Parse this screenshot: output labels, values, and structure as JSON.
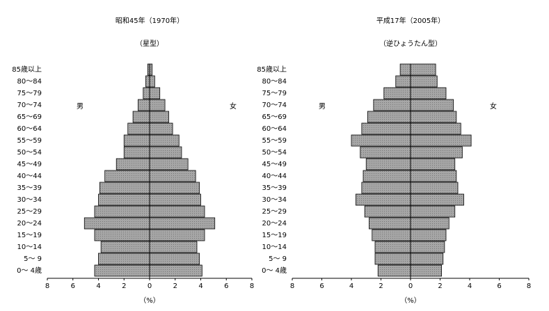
{
  "chart_data": [
    {
      "type": "pyramid",
      "title": "昭和45年（1970年）",
      "subtitle": "（星型）",
      "x_label": "（%）",
      "categories": [
        "0～ 4歳",
        "5～ 9",
        "10～14",
        "15～19",
        "20～24",
        "25～29",
        "30～34",
        "35～39",
        "40～44",
        "45～49",
        "50～54",
        "55～59",
        "60～64",
        "65～69",
        "70～74",
        "75～79",
        "80～84",
        "85歳以上"
      ],
      "series": [
        {
          "name": "男",
          "color": "#a6a6a6",
          "values": [
            4.3,
            4.0,
            3.8,
            4.3,
            5.1,
            4.3,
            4.0,
            3.9,
            3.5,
            2.6,
            2.0,
            2.0,
            1.7,
            1.3,
            0.9,
            0.5,
            0.3,
            0.15
          ]
        },
        {
          "name": "女",
          "color": "#a6a6a6",
          "values": [
            4.1,
            3.9,
            3.7,
            4.3,
            5.1,
            4.3,
            4.0,
            3.9,
            3.6,
            3.0,
            2.5,
            2.3,
            1.8,
            1.5,
            1.2,
            0.8,
            0.4,
            0.2
          ]
        }
      ],
      "xlim": [
        -8,
        8
      ],
      "xticks": [
        {
          "value": -8,
          "label": "8"
        },
        {
          "value": -6,
          "label": "6"
        },
        {
          "value": -4,
          "label": "4"
        },
        {
          "value": -2,
          "label": "2"
        },
        0,
        2,
        4,
        6,
        8
      ]
    },
    {
      "type": "pyramid",
      "title": "平成17年（2005年）",
      "subtitle": "（逆ひょうたん型）",
      "x_label": "（%）",
      "categories": [
        "0～ 4歳",
        "5～ 9",
        "10～14",
        "15～19",
        "20～24",
        "25～29",
        "30～34",
        "35～39",
        "40～44",
        "45～49",
        "50～54",
        "55～59",
        "60～64",
        "65～69",
        "70～74",
        "75～79",
        "80～84",
        "85歳以上"
      ],
      "series": [
        {
          "name": "男",
          "color": "#a6a6a6",
          "values": [
            2.2,
            2.4,
            2.4,
            2.6,
            2.8,
            3.1,
            3.7,
            3.3,
            3.2,
            3.0,
            3.4,
            4.0,
            3.3,
            2.9,
            2.5,
            1.8,
            1.0,
            0.7
          ]
        },
        {
          "name": "女",
          "color": "#a6a6a6",
          "values": [
            2.1,
            2.2,
            2.3,
            2.4,
            2.6,
            3.0,
            3.6,
            3.2,
            3.1,
            3.0,
            3.5,
            4.1,
            3.4,
            3.1,
            2.9,
            2.4,
            1.8,
            1.7
          ]
        }
      ],
      "xlim": [
        -8,
        8
      ],
      "xticks": [
        {
          "value": -8,
          "label": "8"
        },
        {
          "value": -6,
          "label": "6"
        },
        {
          "value": -4,
          "label": "4"
        },
        {
          "value": -2,
          "label": "2"
        },
        0,
        2,
        4,
        6,
        8
      ]
    }
  ]
}
